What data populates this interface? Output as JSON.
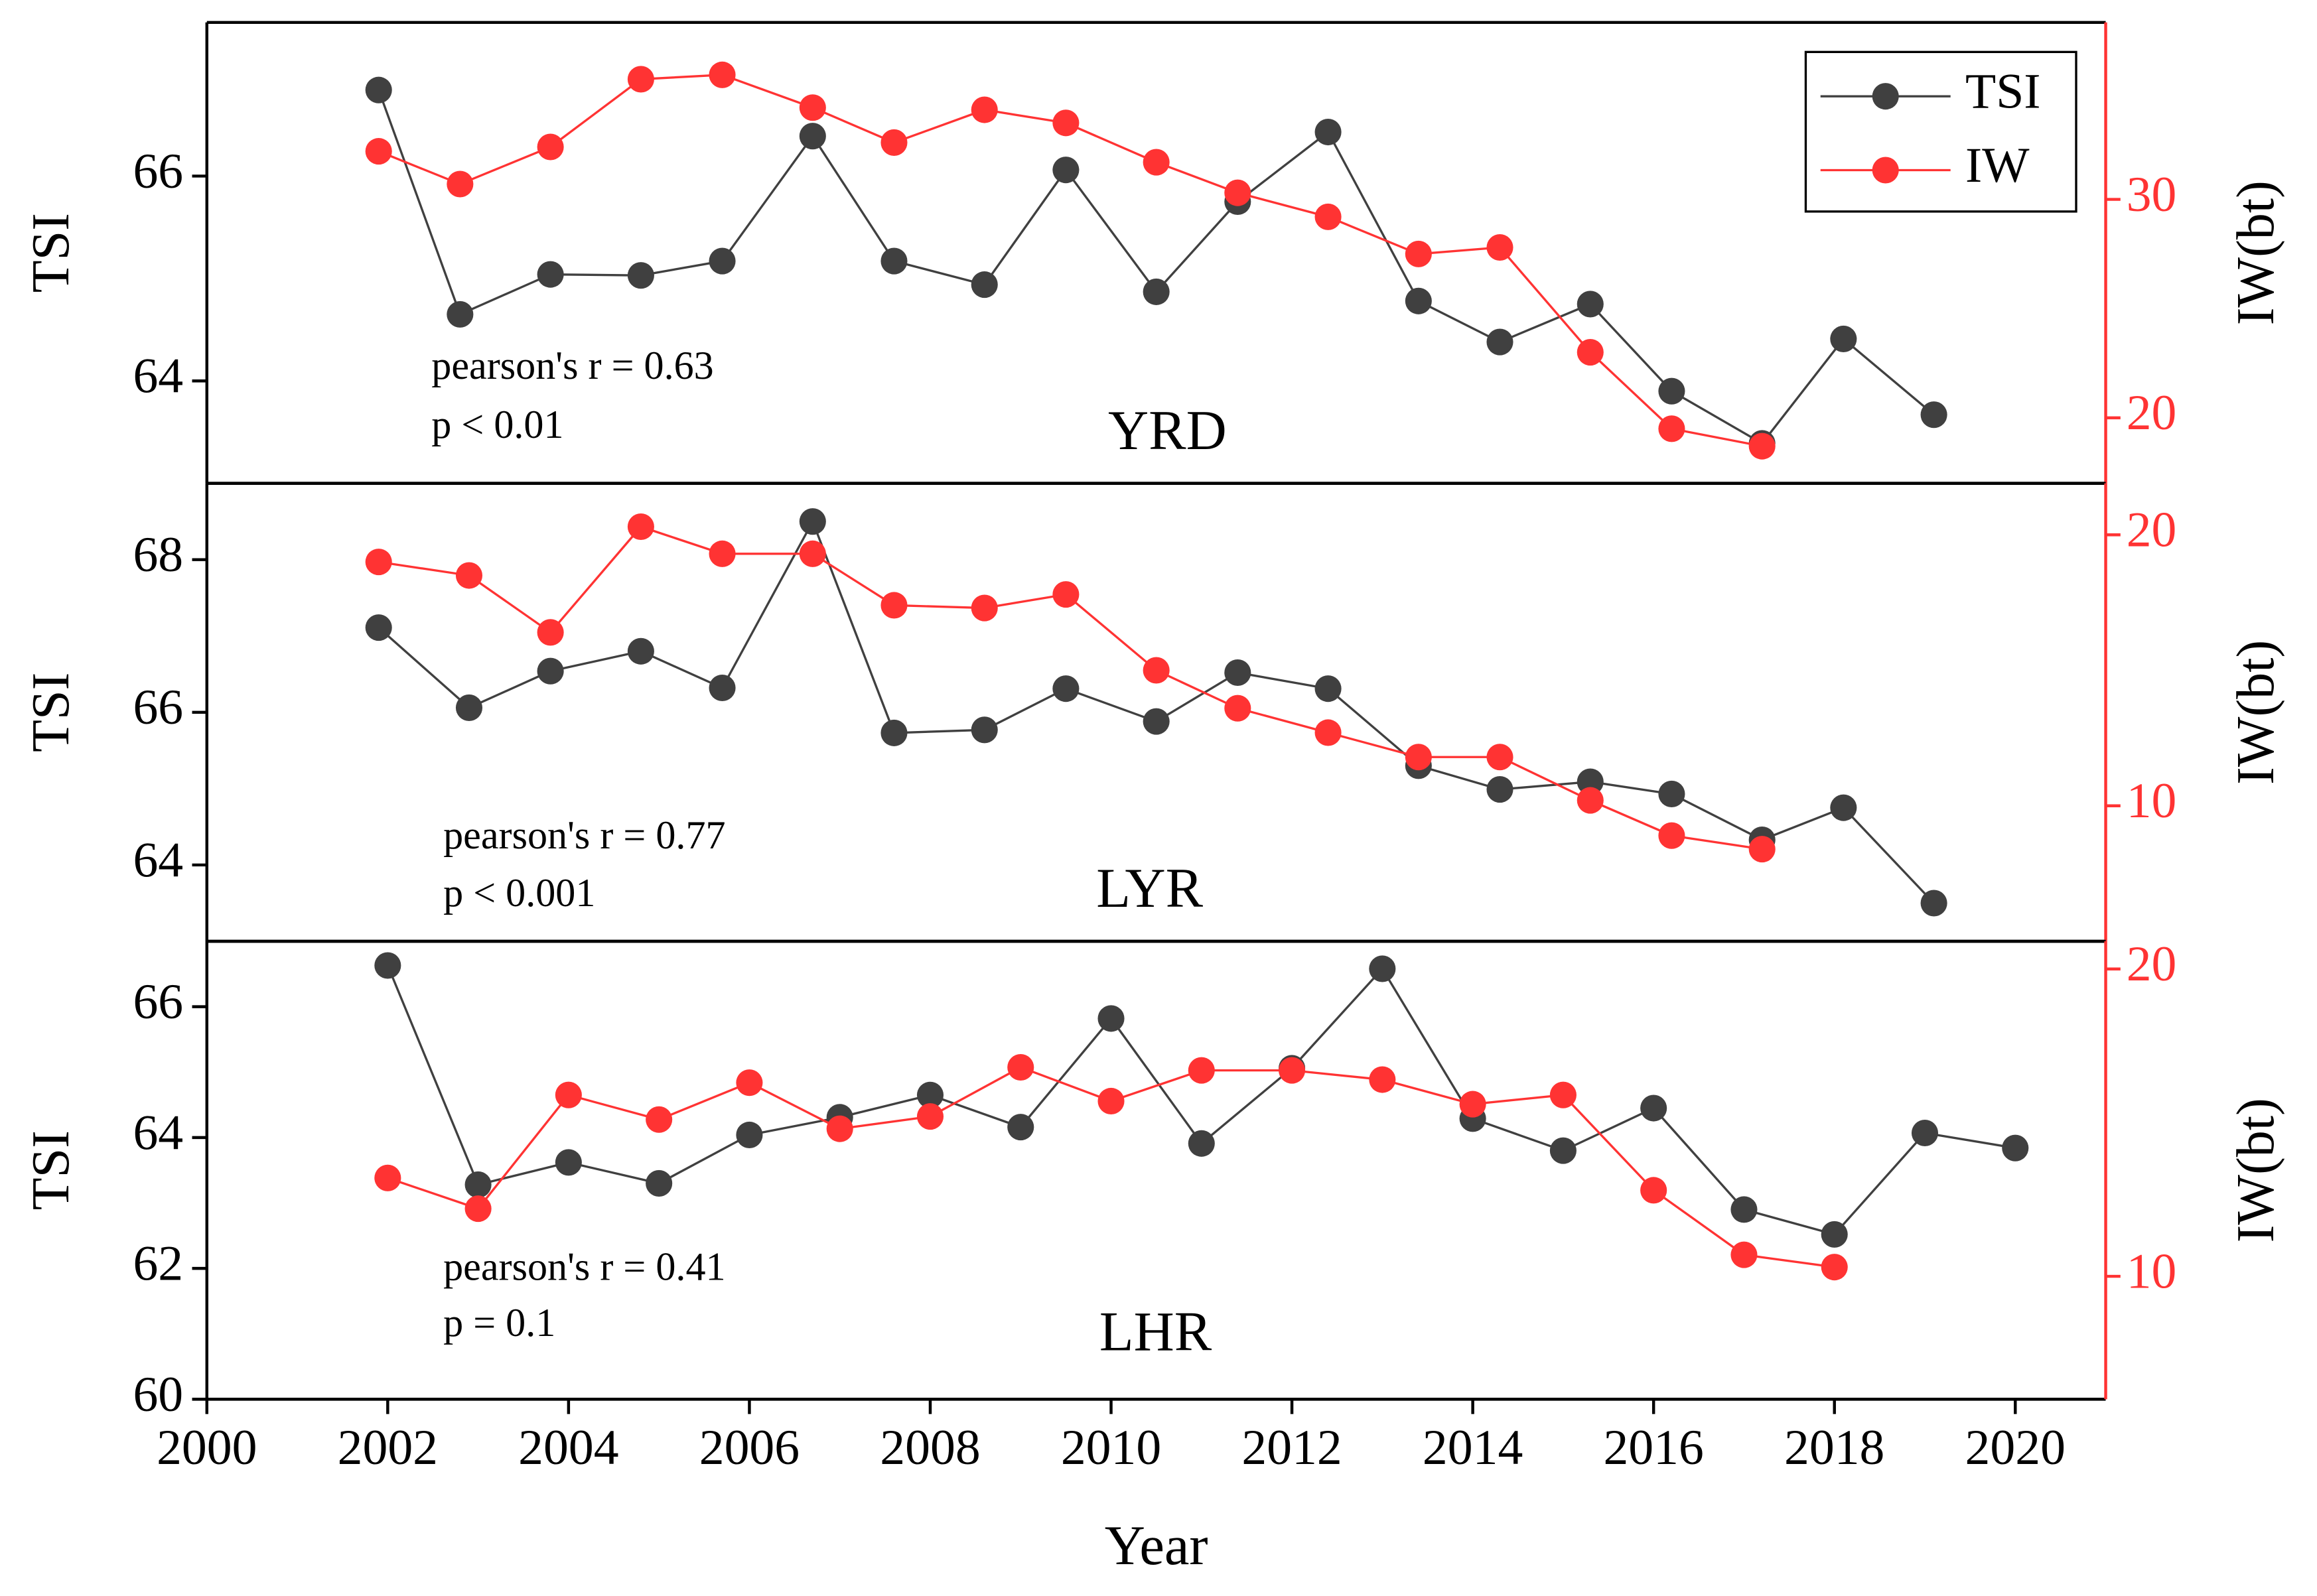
{
  "chart_data": [
    {
      "type": "line",
      "title": "YRD",
      "ylabel": "TSI",
      "y2label": "IW(bt)",
      "annotations": [
        "pearson's r = 0.63",
        "p < 0.01"
      ],
      "xlim": [
        2000,
        2021
      ],
      "ylim": [
        63,
        67.5
      ],
      "yticks": [
        64,
        66
      ],
      "y2lim": [
        17,
        38.1
      ],
      "y2ticks": [
        20,
        30
      ],
      "legend": "upper right",
      "series": [
        {
          "name": "TSI",
          "color": "#404040",
          "x": [
            2001.9,
            2002.8,
            2003.8,
            2004.8,
            2005.7,
            2006.7,
            2007.6,
            2008.6,
            2009.5,
            2010.5,
            2011.4,
            2012.4,
            2013.4,
            2014.3,
            2015.3,
            2016.2,
            2017.2,
            2018.1,
            2019.1
          ],
          "values": [
            66.84,
            64.65,
            65.04,
            65.03,
            65.17,
            66.39,
            65.17,
            64.94,
            66.06,
            64.87,
            65.75,
            66.43,
            64.78,
            64.38,
            64.75,
            63.9,
            63.39,
            64.41,
            63.67
          ]
        },
        {
          "name": "IW",
          "color": "#ff3333",
          "axis": "y2",
          "x": [
            2001.9,
            2002.8,
            2003.8,
            2004.8,
            2005.7,
            2006.7,
            2007.6,
            2008.6,
            2009.5,
            2010.5,
            2011.4,
            2012.4,
            2013.4,
            2014.3,
            2015.3,
            2016.2,
            2017.2
          ],
          "values": [
            32.2,
            30.7,
            32.4,
            35.5,
            35.7,
            34.2,
            32.6,
            34.1,
            33.5,
            31.7,
            30.3,
            29.2,
            27.5,
            27.8,
            23.0,
            19.5,
            18.7
          ]
        }
      ]
    },
    {
      "type": "line",
      "title": "LYR",
      "ylabel": "TSI",
      "y2label": "IW(bt)",
      "annotations": [
        "pearson's r = 0.77",
        "p < 0.001"
      ],
      "xlim": [
        2000,
        2021
      ],
      "ylim": [
        63,
        69
      ],
      "yticks": [
        64,
        66,
        68
      ],
      "y2lim": [
        5,
        21.9
      ],
      "y2ticks": [
        10,
        20
      ],
      "series": [
        {
          "name": "TSI",
          "color": "#404040",
          "x": [
            2001.9,
            2002.9,
            2003.8,
            2004.8,
            2005.7,
            2006.7,
            2007.6,
            2008.6,
            2009.5,
            2010.5,
            2011.4,
            2012.4,
            2013.4,
            2014.3,
            2015.3,
            2016.2,
            2017.2,
            2018.1,
            2019.1
          ],
          "values": [
            67.11,
            66.06,
            66.54,
            66.8,
            66.32,
            68.5,
            65.73,
            65.77,
            66.31,
            65.88,
            66.52,
            66.31,
            65.3,
            64.99,
            65.09,
            64.93,
            64.33,
            64.75,
            63.5
          ]
        },
        {
          "name": "IW",
          "color": "#ff3333",
          "axis": "y2",
          "x": [
            2001.9,
            2002.9,
            2003.8,
            2004.8,
            2005.7,
            2006.7,
            2007.6,
            2008.6,
            2009.5,
            2010.5,
            2011.4,
            2012.4,
            2013.4,
            2014.3,
            2015.3,
            2016.2,
            2017.2
          ],
          "values": [
            19.0,
            18.5,
            16.4,
            20.3,
            19.3,
            19.3,
            17.4,
            17.3,
            17.8,
            15.0,
            13.6,
            12.7,
            11.8,
            11.8,
            10.2,
            8.9,
            8.4
          ]
        }
      ]
    },
    {
      "type": "line",
      "title": "LHR",
      "ylabel": "TSI",
      "y2label": "IW(bt)",
      "xlabel": "Year",
      "annotations": [
        "pearson's r = 0.41",
        "p = 0.1"
      ],
      "xlim": [
        2000,
        2021
      ],
      "xticks": [
        2000,
        2002,
        2004,
        2006,
        2008,
        2010,
        2012,
        2014,
        2016,
        2018,
        2020
      ],
      "ylim": [
        60,
        67
      ],
      "yticks": [
        60,
        62,
        64,
        66
      ],
      "y2lim": [
        6,
        20.9
      ],
      "y2ticks": [
        10,
        20
      ],
      "series": [
        {
          "name": "TSI",
          "color": "#404040",
          "x": [
            2002,
            2003,
            2004,
            2005,
            2006,
            2007,
            2008,
            2009,
            2010,
            2011,
            2012,
            2013,
            2014,
            2015,
            2016,
            2017,
            2018,
            2019,
            2020
          ],
          "values": [
            66.63,
            63.28,
            63.62,
            63.3,
            64.04,
            64.31,
            64.65,
            64.16,
            65.82,
            63.91,
            65.06,
            66.58,
            64.29,
            63.8,
            64.45,
            62.9,
            62.52,
            64.07,
            63.84
          ]
        },
        {
          "name": "IW",
          "color": "#ff3333",
          "axis": "y2",
          "x": [
            2002,
            2003,
            2004,
            2005,
            2006,
            2007,
            2008,
            2009,
            2010,
            2011,
            2012,
            2013,
            2014,
            2015,
            2016,
            2017,
            2018
          ],
          "values": [
            13.2,
            12.2,
            15.9,
            15.1,
            16.3,
            14.8,
            15.2,
            16.8,
            15.7,
            16.7,
            16.7,
            16.4,
            15.6,
            15.9,
            12.8,
            10.7,
            10.3
          ]
        }
      ]
    }
  ]
}
